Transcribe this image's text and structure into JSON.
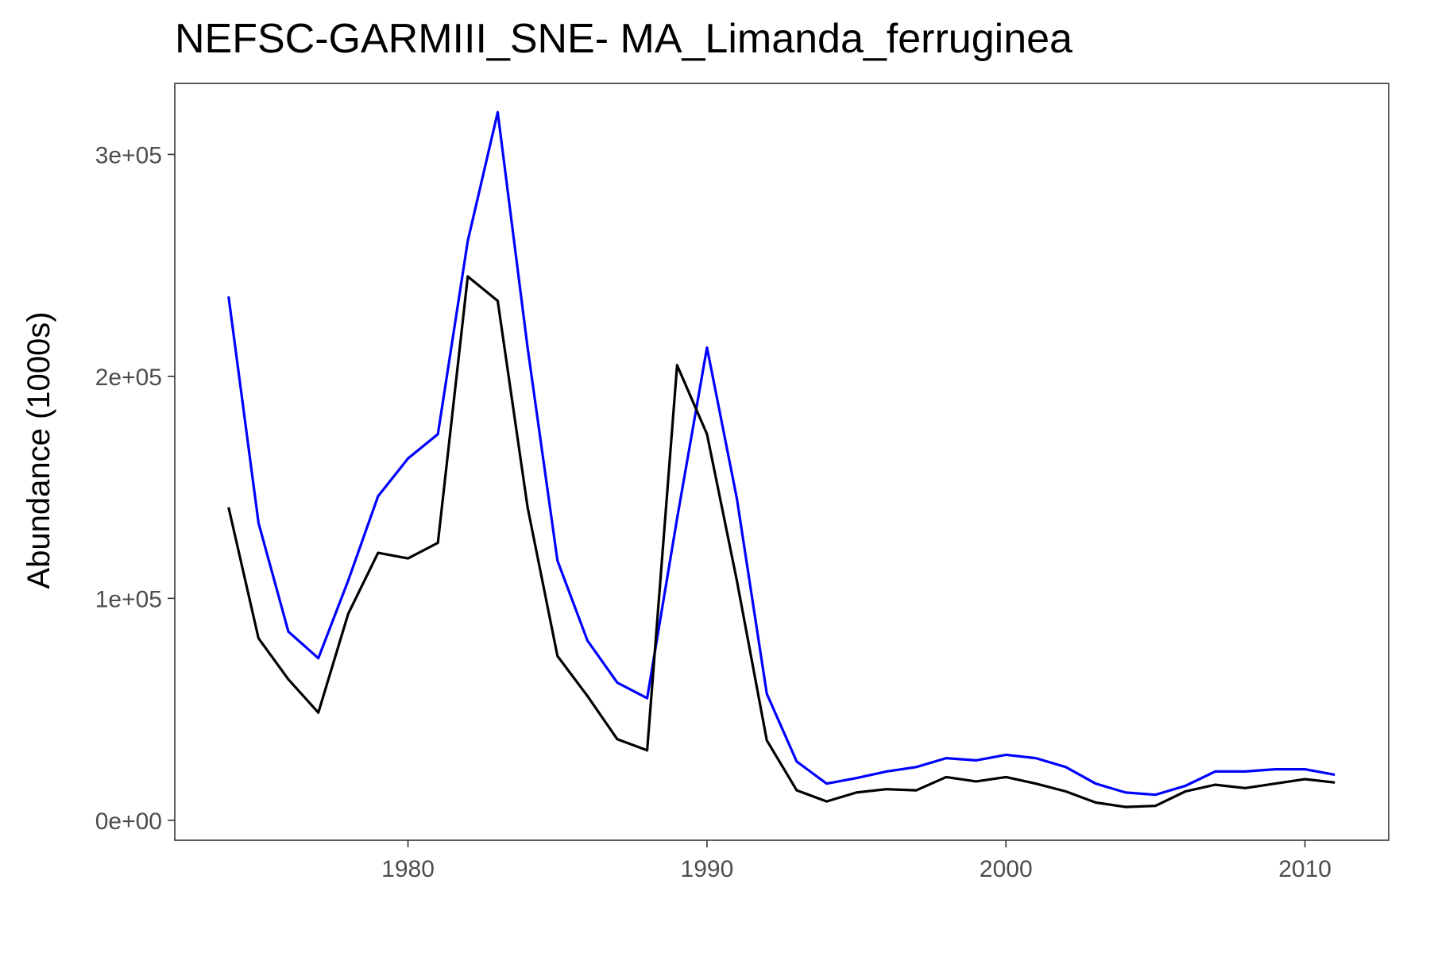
{
  "chart_data": {
    "type": "line",
    "title": "NEFSC-GARMIII_SNE- MA_Limanda_ferruginea",
    "xlabel": "",
    "ylabel": "Abundance (1000s)",
    "xlim": [
      1972.2,
      2012.8
    ],
    "ylim": [
      -9000,
      332000
    ],
    "x_ticks": [
      1980,
      1990,
      2000,
      2010
    ],
    "x_tick_labels": [
      "1980",
      "1990",
      "2000",
      "2010"
    ],
    "y_ticks": [
      0,
      100000,
      200000,
      300000
    ],
    "y_tick_labels": [
      "0e+00",
      "1e+05",
      "2e+05",
      "3e+05"
    ],
    "grid": false,
    "x": [
      1974,
      1975,
      1976,
      1977,
      1978,
      1979,
      1980,
      1981,
      1982,
      1983,
      1984,
      1985,
      1986,
      1987,
      1988,
      1989,
      1990,
      1991,
      1992,
      1993,
      1994,
      1995,
      1996,
      1997,
      1998,
      1999,
      2000,
      2001,
      2002,
      2003,
      2004,
      2005,
      2006,
      2007,
      2008,
      2009,
      2010,
      2011
    ],
    "series": [
      {
        "color": "#0000ff",
        "values": [
          236000,
          134000,
          85000,
          73000,
          108000,
          146000,
          163000,
          174000,
          261000,
          319000,
          213000,
          117000,
          81000,
          62000,
          55000,
          136000,
          213000,
          145000,
          57000,
          26500,
          16500,
          19000,
          22000,
          24000,
          28000,
          27000,
          29500,
          28000,
          24000,
          16500,
          12500,
          11500,
          15500,
          22000,
          22000,
          23000,
          23000,
          20500
        ]
      },
      {
        "color": "#000000",
        "values": [
          141000,
          82000,
          63500,
          48500,
          93000,
          120500,
          118000,
          125000,
          245000,
          234000,
          141000,
          74000,
          56000,
          36500,
          31500,
          205000,
          174000,
          108000,
          36000,
          13500,
          8500,
          12500,
          14000,
          13500,
          19500,
          17500,
          19500,
          16500,
          13000,
          8000,
          6000,
          6500,
          13000,
          16000,
          14500,
          16500,
          18500,
          17000
        ]
      }
    ]
  }
}
